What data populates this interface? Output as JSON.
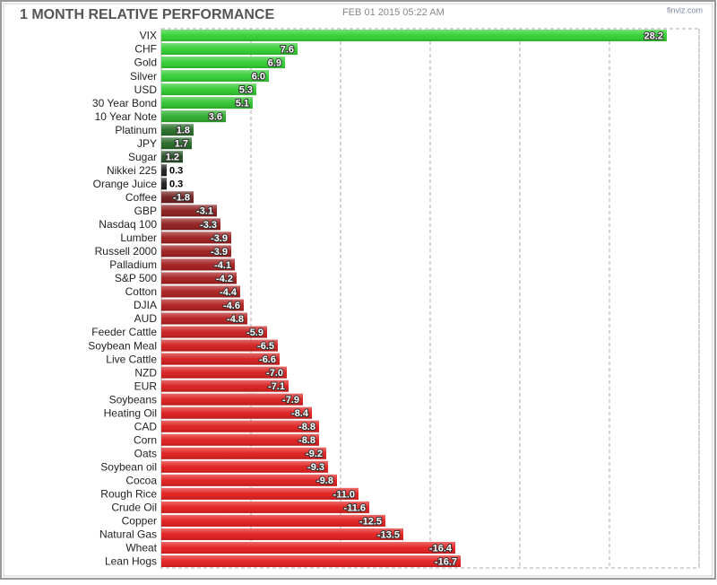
{
  "chart_data": {
    "type": "bar",
    "orientation": "horizontal",
    "title": "1 MONTH RELATIVE PERFORMANCE",
    "subtitle": "FEB 01 2015 05:22 AM",
    "source": "finviz.com",
    "categories": [
      "VIX",
      "CHF",
      "Gold",
      "Silver",
      "USD",
      "30 Year Bond",
      "10 Year Note",
      "Platinum",
      "JPY",
      "Sugar",
      "Nikkei 225",
      "Orange Juice",
      "Coffee",
      "GBP",
      "Nasdaq 100",
      "Lumber",
      "Russell 2000",
      "Palladium",
      "S&P 500",
      "Cotton",
      "DJIA",
      "AUD",
      "Feeder Cattle",
      "Soybean Meal",
      "Live Cattle",
      "NZD",
      "EUR",
      "Soybeans",
      "Heating Oil",
      "CAD",
      "Corn",
      "Oats",
      "Soybean oil",
      "Cocoa",
      "Rough Rice",
      "Crude Oil",
      "Copper",
      "Natural Gas",
      "Wheat",
      "Lean Hogs"
    ],
    "values": [
      28.2,
      7.6,
      6.9,
      6.0,
      5.3,
      5.1,
      3.6,
      1.8,
      1.7,
      1.2,
      0.3,
      0.3,
      -1.8,
      -3.1,
      -3.3,
      -3.9,
      -3.9,
      -4.1,
      -4.2,
      -4.4,
      -4.6,
      -4.8,
      -5.9,
      -6.5,
      -6.6,
      -7.0,
      -7.1,
      -7.9,
      -8.4,
      -8.8,
      -8.8,
      -9.2,
      -9.3,
      -9.8,
      -11.0,
      -11.6,
      -12.5,
      -13.5,
      -16.4,
      -16.7
    ],
    "value_labels": [
      "28.2",
      "7.6",
      "6.9",
      "6.0",
      "5.3",
      "5.1",
      "3.6",
      "1.8",
      "1.7",
      "1.2",
      "0.3",
      "0.3",
      "-1.8",
      "-3.1",
      "-3.3",
      "-3.9",
      "-3.9",
      "-4.1",
      "-4.2",
      "-4.4",
      "-4.6",
      "-4.8",
      "-5.9",
      "-6.5",
      "-6.6",
      "-7.0",
      "-7.1",
      "-7.9",
      "-8.4",
      "-8.8",
      "-8.8",
      "-9.2",
      "-9.3",
      "-9.8",
      "-11.0",
      "-11.6",
      "-12.5",
      "-13.5",
      "-16.4",
      "-16.7"
    ],
    "colors": [
      "#2ed02e",
      "#2ecc2e",
      "#2ecc2e",
      "#2ecc2e",
      "#2cc82c",
      "#2bc22b",
      "#29aa29",
      "#236b23",
      "#226522",
      "#1e4a1e",
      "#1a1a1a",
      "#1a1a1a",
      "#6e1a1a",
      "#8a1a1a",
      "#8e1a1a",
      "#9c1a1a",
      "#9c1a1a",
      "#a21a1a",
      "#a41a1a",
      "#aa1a1a",
      "#ae1a1a",
      "#b41a1a",
      "#c81a1a",
      "#d01a1a",
      "#d21a1a",
      "#d61a1a",
      "#d81a1a",
      "#da1a1a",
      "#dc1a1a",
      "#de1a1a",
      "#de1a1a",
      "#e01a1a",
      "#e01a1a",
      "#e01a1a",
      "#e21a1a",
      "#e21a1a",
      "#e21a1a",
      "#e21a1a",
      "#e41a1a",
      "#e41a1a"
    ],
    "xlim": [
      0,
      30
    ],
    "xticks": [
      0,
      5,
      10,
      15,
      20,
      25,
      30
    ],
    "grid": true
  }
}
